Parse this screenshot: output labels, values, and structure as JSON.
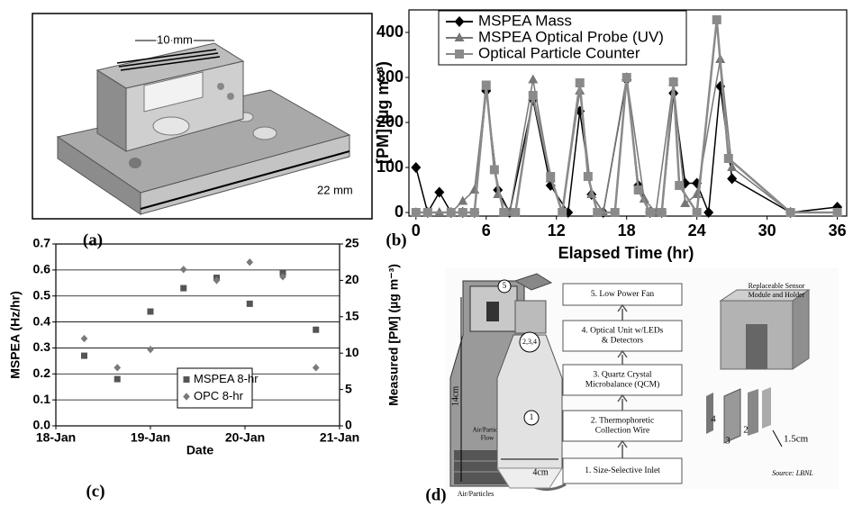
{
  "panel_labels": [
    "(a)",
    "(b)",
    "(c)",
    "(d)"
  ],
  "drawing_a": {
    "dimension_top": "10 mm",
    "dimension_right": "22 mm"
  },
  "chart_data": [
    {
      "type": "line",
      "xlabel": "Elapsed Time (hr)",
      "ylabel": "[PM]  (µg m⁻³)",
      "xlim": [
        -0.6,
        36.8
      ],
      "xticks": [
        0,
        6,
        12,
        18,
        24,
        30,
        36
      ],
      "ylim": [
        -8,
        450
      ],
      "yticks": [
        0,
        100,
        200,
        300,
        400
      ],
      "grid": false,
      "legend": "upper left",
      "series": [
        {
          "name": "MSPEA Mass",
          "color": "#000000",
          "marker": "diamond",
          "x": [
            0,
            1,
            2,
            3,
            4,
            5,
            6,
            7,
            8,
            10,
            11.5,
            13,
            14,
            15,
            16,
            18,
            19,
            20,
            21,
            22,
            23,
            24,
            25,
            26,
            27,
            32,
            36
          ],
          "values": [
            100,
            0,
            45,
            0,
            0,
            0,
            270,
            50,
            0,
            250,
            60,
            0,
            225,
            40,
            0,
            295,
            60,
            0,
            0,
            265,
            65,
            65,
            0,
            280,
            75,
            0,
            12
          ]
        },
        {
          "name": "MSPEA Optical Probe (UV)",
          "color": "#777777",
          "marker": "triangle",
          "x": [
            0,
            2,
            3,
            4,
            5,
            6,
            7,
            8,
            10,
            11.5,
            12.5,
            14,
            15,
            16,
            18,
            19.5,
            20.5,
            22,
            23,
            24,
            26,
            27,
            32,
            36
          ],
          "values": [
            0,
            0,
            0,
            25,
            50,
            280,
            40,
            0,
            295,
            75,
            0,
            270,
            40,
            0,
            300,
            30,
            0,
            290,
            20,
            40,
            340,
            100,
            0,
            0
          ]
        },
        {
          "name": "Optical Particle Counter",
          "color": "#8a8a8a",
          "marker": "square",
          "x": [
            0,
            1,
            3,
            4,
            5,
            6,
            6.7,
            7.5,
            8.5,
            10,
            11.5,
            12.5,
            14,
            14.7,
            15.5,
            17,
            18,
            19,
            20,
            21,
            22,
            22.5,
            24,
            25.7,
            26.7,
            32,
            36
          ],
          "values": [
            0,
            0,
            0,
            0,
            0,
            283,
            95,
            0,
            0,
            260,
            80,
            0,
            288,
            80,
            0,
            0,
            300,
            50,
            0,
            0,
            290,
            60,
            0,
            428,
            120,
            0,
            0
          ]
        }
      ]
    },
    {
      "type": "scatter",
      "xlabel": "Date",
      "ylabel": "MSPEA (Hz/hr)",
      "y2label": "Measured [PM] (µg m⁻³)",
      "xlim": [
        0,
        3
      ],
      "xticks": [
        {
          "value": 0,
          "label": "18-Jan"
        },
        {
          "value": 1,
          "label": "19-Jan"
        },
        {
          "value": 2,
          "label": "20-Jan"
        },
        {
          "value": 3,
          "label": "21-Jan"
        }
      ],
      "ylim": [
        0,
        0.7
      ],
      "yticks": [
        {
          "value": 0,
          "label": "0.0"
        },
        0.1,
        0.2,
        0.3,
        0.4,
        0.5,
        0.6,
        0.7
      ],
      "y2lim": [
        0,
        25
      ],
      "y2ticks": [
        0,
        5,
        10,
        15,
        20,
        25
      ],
      "grid": true,
      "legend": "lower center",
      "series": [
        {
          "name": "MSPEA 8-hr",
          "color": "#555555",
          "marker": "square",
          "x": [
            0.3,
            0.65,
            1.0,
            1.35,
            1.7,
            2.05,
            2.4,
            2.75
          ],
          "values": [
            0.27,
            0.18,
            0.44,
            0.53,
            0.57,
            0.47,
            0.59,
            0.37
          ]
        },
        {
          "name": "OPC 8-hr",
          "color": "#7a7a7a",
          "marker": "diamond",
          "axis": "y2",
          "x": [
            0.3,
            0.65,
            1.0,
            1.35,
            1.7,
            2.05,
            2.4,
            2.75
          ],
          "values": [
            12,
            8,
            10.5,
            21.5,
            20,
            22.5,
            20.5,
            8
          ]
        }
      ]
    }
  ],
  "diagram_d": {
    "steps": [
      {
        "lines": [
          "1. Size-Selective Inlet"
        ]
      },
      {
        "lines": [
          "2. Thermophoretic",
          "Collection Wire"
        ]
      },
      {
        "lines": [
          "3. Quartz Crystal",
          "Microbalance (QCM)"
        ]
      },
      {
        "lines": [
          "4. Optical Unit w/LEDs",
          "& Detectors"
        ]
      },
      {
        "lines": [
          "5. Low Power Fan"
        ]
      }
    ],
    "callout_fan": "5",
    "callout_unit": "2,3,4",
    "callout_inlet": "1",
    "height_label": "14cm",
    "width_label": "4cm",
    "flow_lines": [
      "Air/Particle",
      "Flow"
    ],
    "inflow_label": "Air/Particles",
    "module_title_lines": [
      "Replaceable Sensor",
      "Module and Holder"
    ],
    "part_4": "4",
    "part_3": "3",
    "part_2": "2",
    "thickness_label": "1.5cm",
    "source": "Source: LBNL"
  }
}
